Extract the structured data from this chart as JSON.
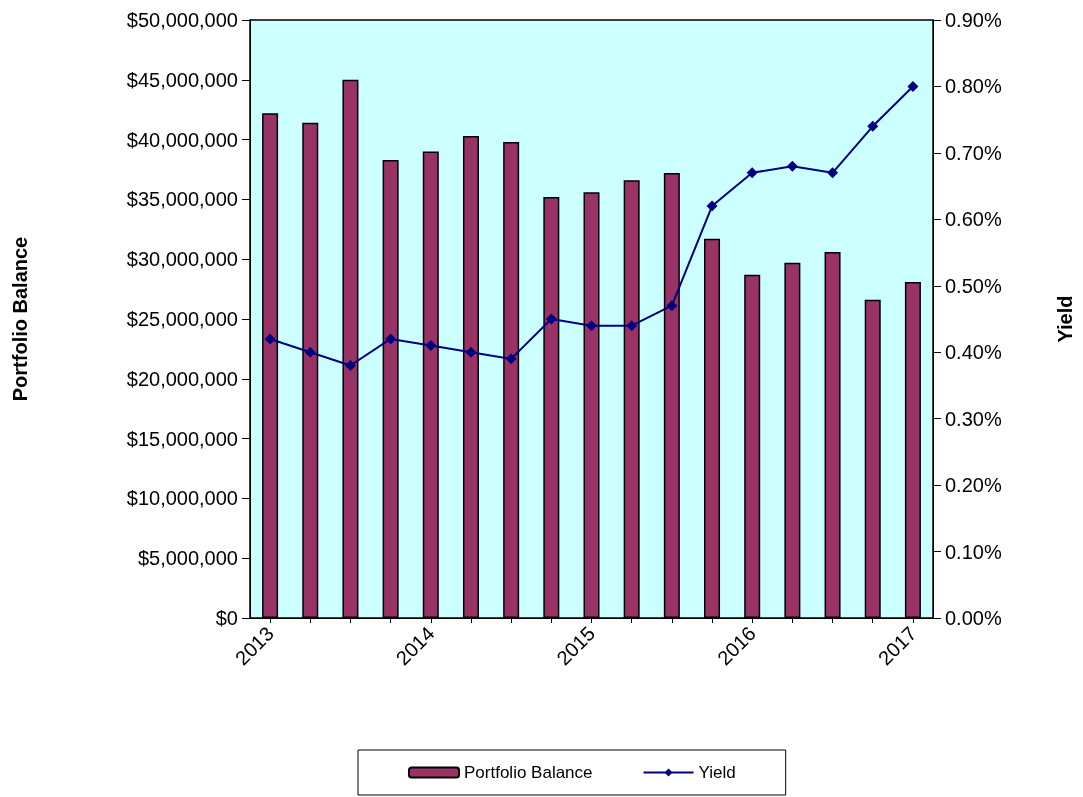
{
  "chart_data": {
    "type": "bar",
    "categories": [
      "2013",
      null,
      null,
      null,
      "2014",
      null,
      null,
      null,
      "2015",
      null,
      null,
      null,
      "2016",
      null,
      null,
      null,
      "2017"
    ],
    "series": [
      {
        "name": "Portfolio Balance",
        "color": "#993366",
        "values": [
          42200000,
          41400000,
          45000000,
          38300000,
          39000000,
          40300000,
          39800000,
          35200000,
          35600000,
          36600000,
          37200000,
          31700000,
          28700000,
          29700000,
          30600000,
          26600000,
          28100000
        ]
      },
      {
        "name": "Yield",
        "type": "line",
        "axis": "y2",
        "color": "#000080",
        "values": [
          0.42,
          0.4,
          0.38,
          0.42,
          0.41,
          0.4,
          0.39,
          0.45,
          0.44,
          0.44,
          0.47,
          0.62,
          0.67,
          0.68,
          0.67,
          0.74,
          0.8
        ]
      }
    ],
    "ylabel": "Portfolio Balance",
    "y2label": "Yield",
    "ylim": [
      0,
      50000000
    ],
    "yticks": [
      {
        "value": 0,
        "label": "$0"
      },
      {
        "value": 5000000,
        "label": "$5,000,000"
      },
      {
        "value": 10000000,
        "label": "$10,000,000"
      },
      {
        "value": 15000000,
        "label": "$15,000,000"
      },
      {
        "value": 20000000,
        "label": "$20,000,000"
      },
      {
        "value": 25000000,
        "label": "$25,000,000"
      },
      {
        "value": 30000000,
        "label": "$30,000,000"
      },
      {
        "value": 35000000,
        "label": "$35,000,000"
      },
      {
        "value": 40000000,
        "label": "$40,000,000"
      },
      {
        "value": 45000000,
        "label": "$45,000,000"
      },
      {
        "value": 50000000,
        "label": "$50,000,000"
      }
    ],
    "y2lim": [
      0,
      0.9
    ],
    "y2ticks": [
      {
        "value": 0,
        "label": "0.00%"
      },
      {
        "value": 0.1,
        "label": "0.10%"
      },
      {
        "value": 0.2,
        "label": "0.20%"
      },
      {
        "value": 0.3,
        "label": "0.30%"
      },
      {
        "value": 0.4,
        "label": "0.40%"
      },
      {
        "value": 0.5,
        "label": "0.50%"
      },
      {
        "value": 0.6,
        "label": "0.60%"
      },
      {
        "value": 0.7,
        "label": "0.70%"
      },
      {
        "value": 0.8,
        "label": "0.80%"
      },
      {
        "value": 0.9,
        "label": "0.90%"
      }
    ],
    "marker": "diamond",
    "legend": "bottom"
  }
}
